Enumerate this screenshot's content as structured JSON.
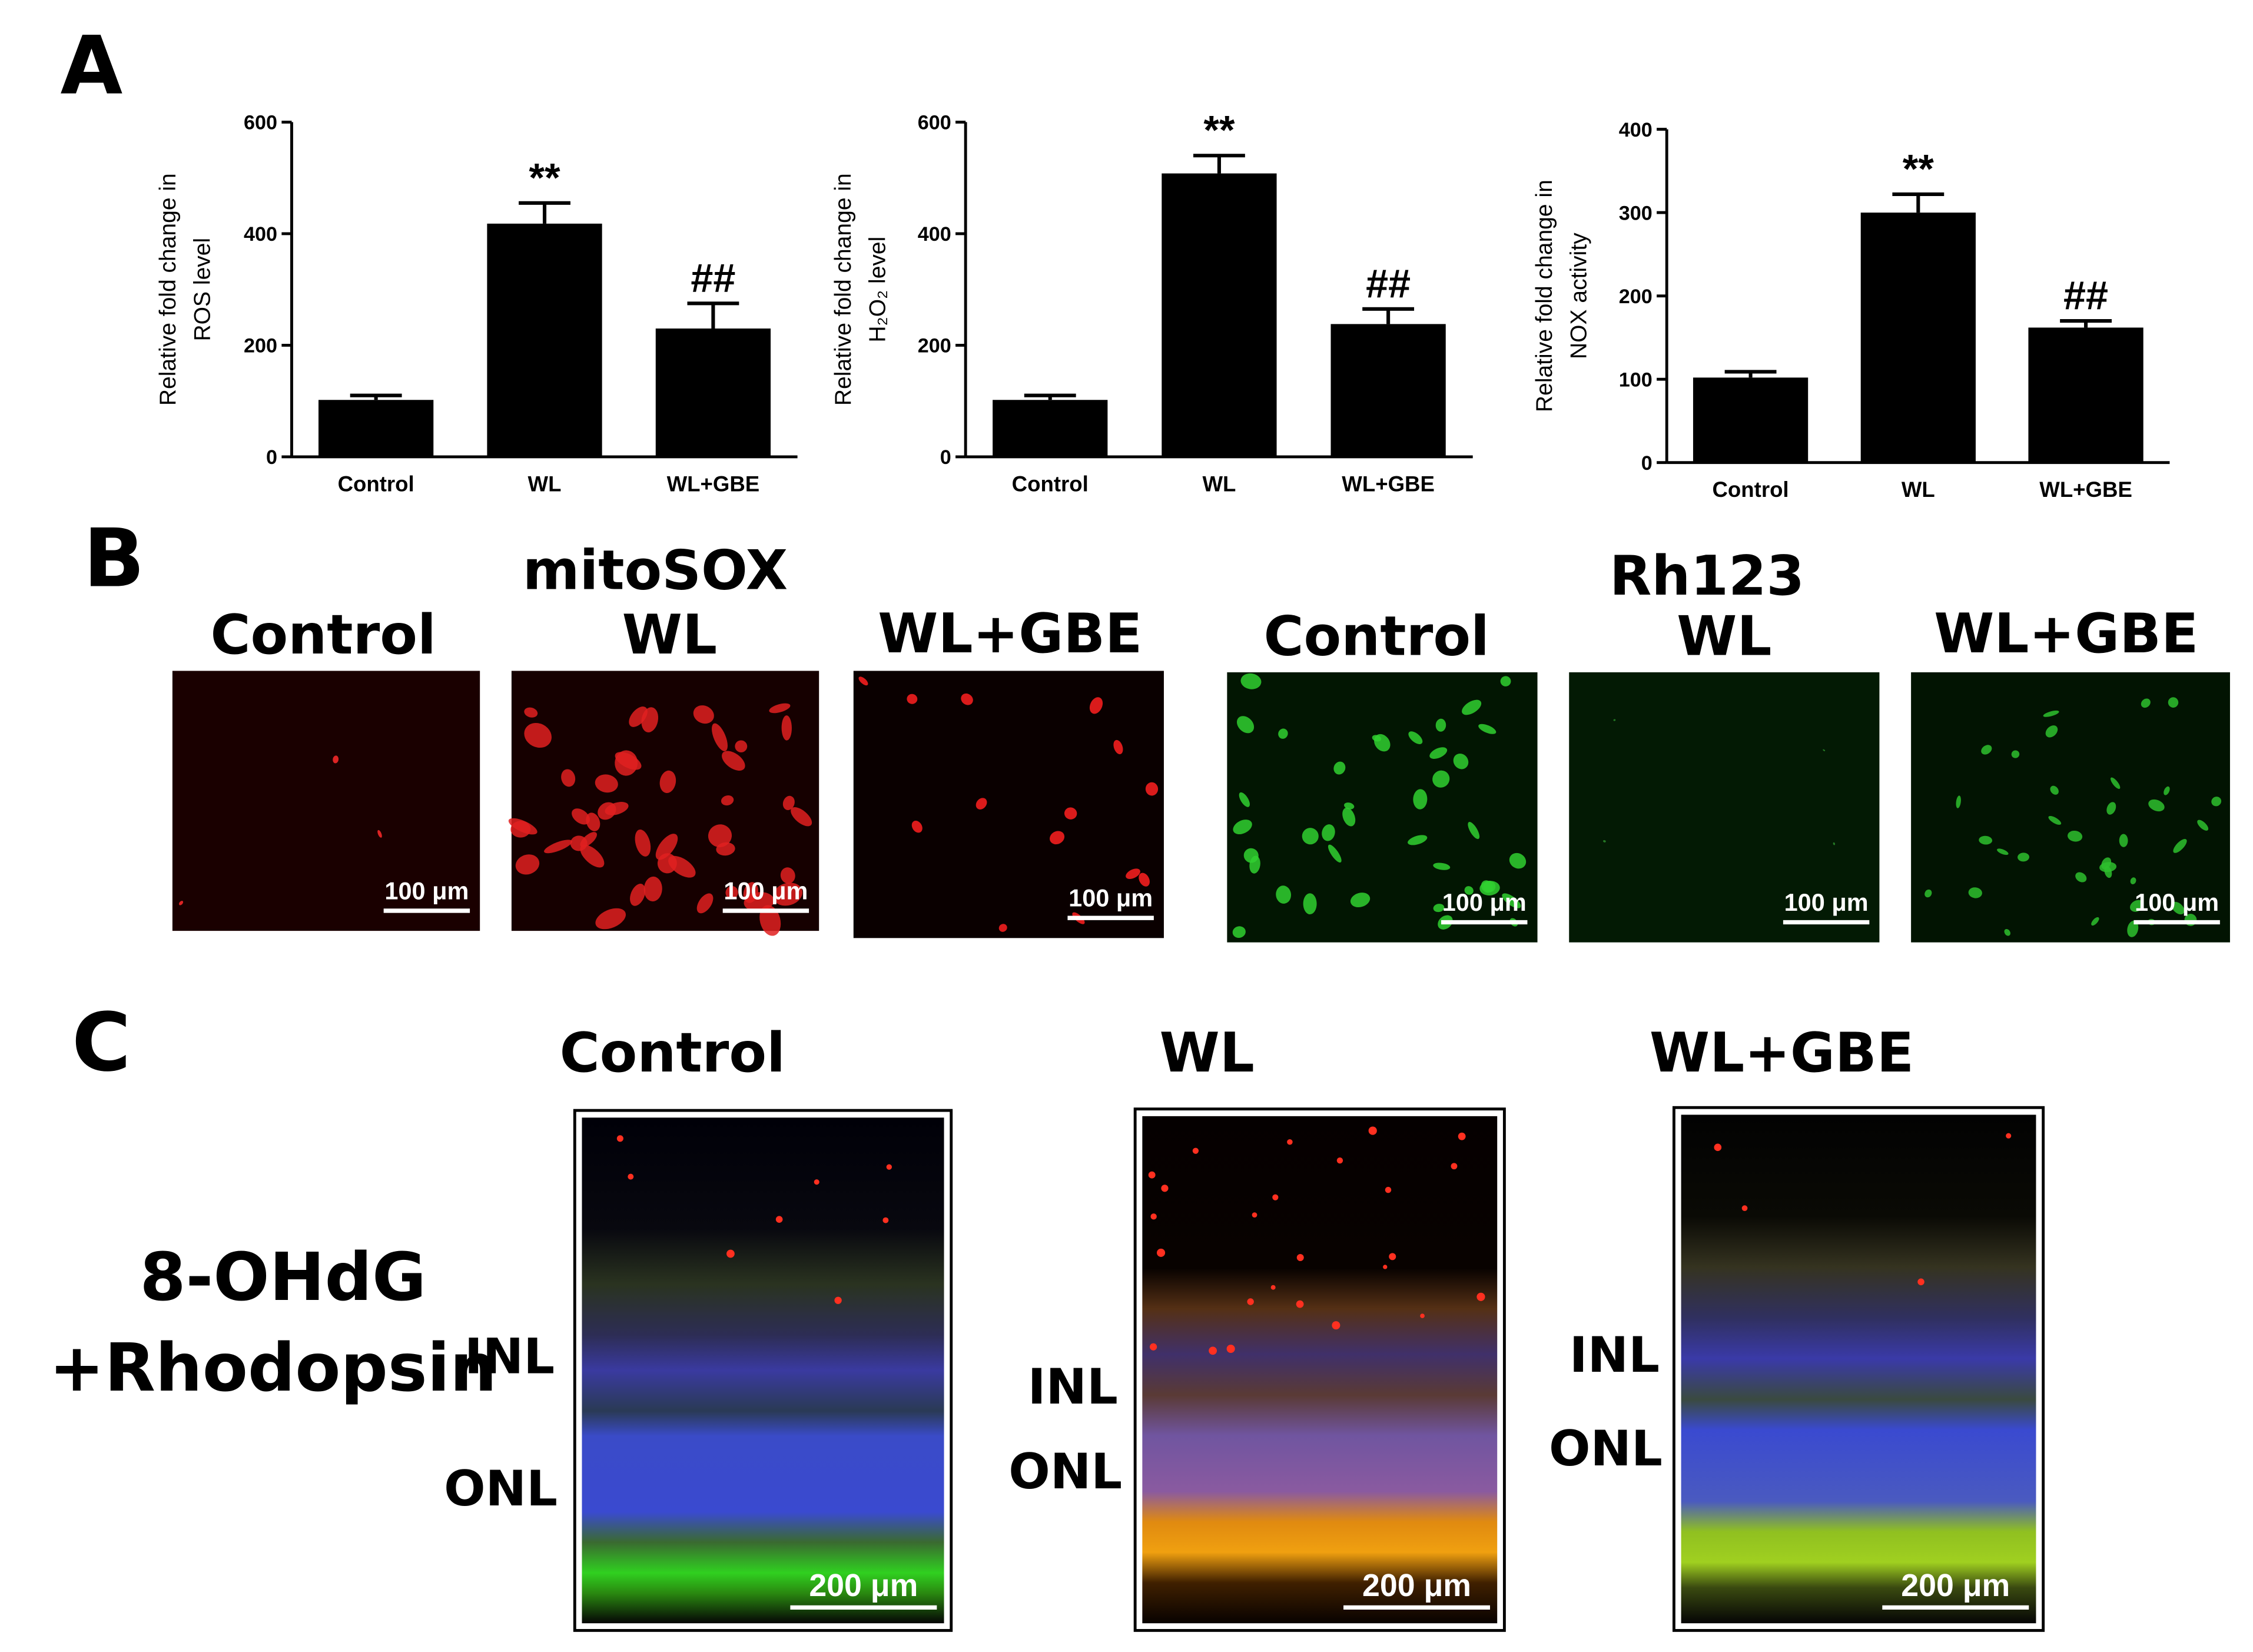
{
  "panel_labels": [
    "A",
    "B",
    "C"
  ],
  "chart_data": [
    {
      "type": "bar",
      "y_label": [
        "Relative fold change in",
        "ROS level"
      ],
      "categories": [
        "Control",
        "WL",
        "WL+GBE"
      ],
      "values": [
        102,
        418,
        230
      ],
      "errors": [
        8,
        37,
        45
      ],
      "significance": [
        null,
        "**",
        "##"
      ],
      "color": "#000000",
      "ylim": [
        0,
        600
      ],
      "yticks": [
        0,
        200,
        400,
        600
      ]
    },
    {
      "type": "bar",
      "y_label": [
        "Relative fold change in",
        "H₂O₂ level"
      ],
      "categories": [
        "Control",
        "WL",
        "WL+GBE"
      ],
      "values": [
        102,
        508,
        238
      ],
      "errors": [
        8,
        32,
        27
      ],
      "significance": [
        null,
        "**",
        "##"
      ],
      "color": "#000000",
      "ylim": [
        0,
        600
      ],
      "yticks": [
        0,
        200,
        400,
        600
      ]
    },
    {
      "type": "bar",
      "y_label": [
        "Relative fold change in",
        "NOX activity"
      ],
      "categories": [
        "Control",
        "WL",
        "WL+GBE"
      ],
      "values": [
        102,
        300,
        162
      ],
      "errors": [
        7,
        22,
        8
      ],
      "significance": [
        null,
        "**",
        "##"
      ],
      "color": "#000000",
      "ylim": [
        0,
        400
      ],
      "yticks": [
        0,
        100,
        200,
        300,
        400
      ]
    }
  ],
  "panel_b": {
    "stains": [
      "mitoSOX",
      "Rh123"
    ],
    "groups": [
      "Control",
      "WL",
      "WL+GBE"
    ],
    "scale_bar": "100 μm"
  },
  "panel_c": {
    "stain": [
      "8-OHdG",
      "+Rhodopsin"
    ],
    "groups": [
      "Control",
      "WL",
      "WL+GBE"
    ],
    "layers": [
      "INL",
      "ONL"
    ],
    "scale_bar": "200 μm"
  }
}
